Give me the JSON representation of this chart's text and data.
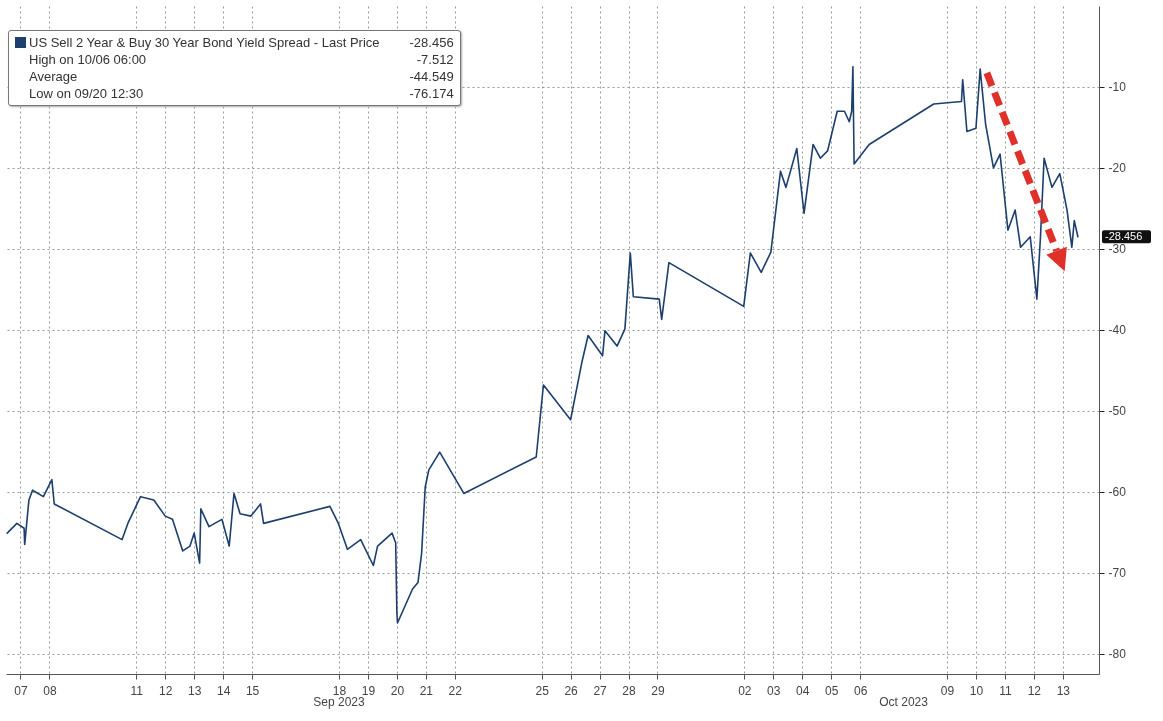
{
  "chart_data": {
    "type": "line",
    "series": [
      {
        "name": "US Sell 2 Year & Buy 30 Year Bond Yield Spread - Last Price",
        "color": "#1c3f6e",
        "x": [
          "2023-09-07T01:00",
          "2023-09-07T09:00",
          "2023-09-07T15:00",
          "2023-09-07T15:30",
          "2023-09-07T19:00",
          "2023-09-07T22:00",
          "2023-09-08T07:00",
          "2023-09-08T14:00",
          "2023-09-08T16:00",
          "2023-09-11T00:15",
          "2023-09-11T05:00",
          "2023-09-11T15:30",
          "2023-09-12T02:30",
          "2023-09-12T12:00",
          "2023-09-12T18:00",
          "2023-09-13T02:30",
          "2023-09-13T08:30",
          "2023-09-13T12:00",
          "2023-09-13T16:30",
          "2023-09-13T17:30",
          "2023-09-14T00:15",
          "2023-09-14T11:00",
          "2023-09-14T17:00",
          "2023-09-14T21:00",
          "2023-09-15T02:00",
          "2023-09-15T11:00",
          "2023-09-15T19:00",
          "2023-09-15T21:30",
          "2023-09-18T04:30",
          "2023-09-18T11:30",
          "2023-09-18T19:00",
          "2023-09-19T06:00",
          "2023-09-19T16:30",
          "2023-09-19T20:00",
          "2023-09-20T08:00",
          "2023-09-20T11:00",
          "2023-09-20T12:00",
          "2023-09-20T12:30",
          "2023-09-21T01:00",
          "2023-09-21T05:30",
          "2023-09-21T08:30",
          "2023-09-21T11:30",
          "2023-09-21T14:30",
          "2023-09-21T23:30",
          "2023-09-22T19:30",
          "2023-09-25T07:30",
          "2023-09-25T13:30",
          "2023-09-26T12:00",
          "2023-09-26T21:30",
          "2023-09-27T02:30",
          "2023-09-27T14:30",
          "2023-09-27T16:30",
          "2023-09-28T02:30",
          "2023-09-28T09:00",
          "2023-09-28T13:30",
          "2023-09-28T16:00",
          "2023-09-29T13:30",
          "2023-09-29T15:30",
          "2023-09-29T21:30",
          "2023-10-02T11:30",
          "2023-10-02T17:00",
          "2023-10-03T02:00",
          "2023-10-03T10:00",
          "2023-10-03T18:00",
          "2023-10-03T22:30",
          "2023-10-04T07:30",
          "2023-10-04T13:30",
          "2023-10-04T21:00",
          "2023-10-05T03:00",
          "2023-10-05T09:00",
          "2023-10-05T17:00",
          "2023-10-05T23:00",
          "2023-10-06T03:00",
          "2023-10-06T05:00",
          "2023-10-06T06:00",
          "2023-10-06T07:00",
          "2023-10-06T19:30",
          "2023-10-09T01:00",
          "2023-10-10T00:00",
          "2023-10-10T01:00",
          "2023-10-10T04:30",
          "2023-10-10T12:00",
          "2023-10-10T15:30",
          "2023-10-10T20:00",
          "2023-10-11T02:30",
          "2023-10-11T08:00",
          "2023-10-11T14:30",
          "2023-10-11T20:30",
          "2023-10-12T01:00",
          "2023-10-12T09:00",
          "2023-10-12T14:30",
          "2023-10-12T17:30",
          "2023-10-12T20:30",
          "2023-10-13T03:00",
          "2023-10-13T09:30",
          "2023-10-13T15:30",
          "2023-10-13T19:30",
          "2023-10-13T21:30",
          "2023-10-14T00:30"
        ],
        "values": [
          -65.1,
          -63.9,
          -64.5,
          -66.5,
          -61,
          -59.8,
          -60.6,
          -58.5,
          -61.5,
          -65.9,
          -63.9,
          -60.6,
          -61,
          -63,
          -63.4,
          -67.3,
          -66.7,
          -65.1,
          -68.8,
          -62.1,
          -64.3,
          -63.4,
          -66.7,
          -60.2,
          -62.7,
          -63,
          -61.5,
          -63.9,
          -61.8,
          -63.9,
          -67.1,
          -65.9,
          -69.1,
          -66.7,
          -65.1,
          -66.3,
          -74.9,
          -76.2,
          -72,
          -71.2,
          -67.6,
          -59.4,
          -57.3,
          -55.1,
          -60.2,
          -55.7,
          -46.8,
          -51.1,
          -43.9,
          -40.7,
          -43.2,
          -40.1,
          -42,
          -39.9,
          -30.5,
          -35.9,
          -36.2,
          -38.7,
          -31.7,
          -37.1,
          -30.5,
          -32.9,
          -30.4,
          -20.4,
          -22.4,
          -17.6,
          -25.6,
          -17.1,
          -18.8,
          -17.9,
          -13,
          -13,
          -14.3,
          -13,
          -7.5,
          -19.5,
          -17.1,
          -12.1,
          -11.8,
          -9.1,
          -15.5,
          -15.1,
          -7.8,
          -14.6,
          -20,
          -18.3,
          -27.7,
          -25.2,
          -29.8,
          -28.5,
          -36.2,
          -28.5,
          -18.8,
          -22.4,
          -20.7,
          -25.2,
          -29.8,
          -26.5,
          -28.5
        ]
      }
    ],
    "xlim": [
      "2023-09-07T00:00",
      "2023-10-14T18:00"
    ],
    "xticks": [
      {
        "value": "2023-09-07T12:00",
        "label": "07"
      },
      {
        "value": "2023-09-08T12:00",
        "label": "08"
      },
      {
        "value": "2023-09-11T12:00",
        "label": "11"
      },
      {
        "value": "2023-09-12T12:00",
        "label": "12"
      },
      {
        "value": "2023-09-13T12:00",
        "label": "13"
      },
      {
        "value": "2023-09-14T12:00",
        "label": "14"
      },
      {
        "value": "2023-09-15T12:00",
        "label": "15"
      },
      {
        "value": "2023-09-18T12:00",
        "label": "18"
      },
      {
        "value": "2023-09-19T12:00",
        "label": "19"
      },
      {
        "value": "2023-09-20T12:00",
        "label": "20"
      },
      {
        "value": "2023-09-21T12:00",
        "label": "21"
      },
      {
        "value": "2023-09-22T12:00",
        "label": "22"
      },
      {
        "value": "2023-09-25T12:00",
        "label": "25"
      },
      {
        "value": "2023-09-26T12:00",
        "label": "26"
      },
      {
        "value": "2023-09-27T12:00",
        "label": "27"
      },
      {
        "value": "2023-09-28T12:00",
        "label": "28"
      },
      {
        "value": "2023-09-29T12:00",
        "label": "29"
      },
      {
        "value": "2023-10-02T12:00",
        "label": "02"
      },
      {
        "value": "2023-10-03T12:00",
        "label": "03"
      },
      {
        "value": "2023-10-04T12:00",
        "label": "04"
      },
      {
        "value": "2023-10-05T12:00",
        "label": "05"
      },
      {
        "value": "2023-10-06T12:00",
        "label": "06"
      },
      {
        "value": "2023-10-09T12:00",
        "label": "09"
      },
      {
        "value": "2023-10-10T12:00",
        "label": "10"
      },
      {
        "value": "2023-10-11T12:00",
        "label": "11"
      },
      {
        "value": "2023-10-12T12:00",
        "label": "12"
      },
      {
        "value": "2023-10-13T12:00",
        "label": "13"
      }
    ],
    "ylim": [
      -82.5,
      0
    ],
    "yticks": [
      -10,
      -20,
      -30,
      -40,
      -50,
      -60,
      -70,
      -80
    ],
    "grid": true,
    "legend": "top left",
    "annotations": [
      "-28.456",
      "High on 10/06 06:00",
      "-7.512",
      "Average",
      "-44.549",
      "Low on 09/20 12:30",
      "-76.174",
      "Sep 2023",
      "Oct 2023",
      "-28.456"
    ]
  }
}
